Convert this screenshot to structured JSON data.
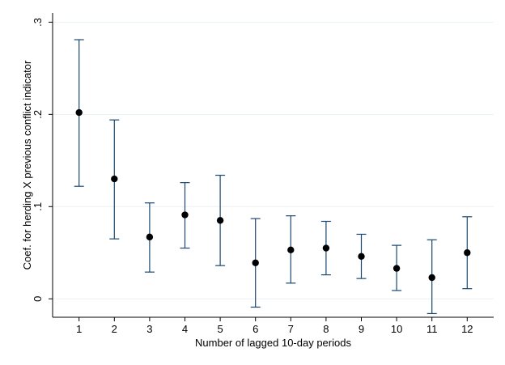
{
  "chart_data": {
    "type": "scatter",
    "title": "",
    "xlabel": "Number of lagged 10-day periods",
    "ylabel": "Coef. for herding X previous conflict indicator",
    "xlim": [
      0.25,
      12.75
    ],
    "ylim": [
      -0.02,
      0.31
    ],
    "x_ticks": [
      "1",
      "2",
      "3",
      "4",
      "5",
      "6",
      "7",
      "8",
      "9",
      "10",
      "11",
      "12"
    ],
    "y_ticks": [
      {
        "value": 0,
        "label": "0"
      },
      {
        "value": 0.1,
        "label": ".1"
      },
      {
        "value": 0.2,
        "label": ".2"
      },
      {
        "value": 0.3,
        "label": ".3"
      }
    ],
    "grid": true,
    "legend": "none",
    "colors": {
      "point": "#000000",
      "error_bar": "#1a476f",
      "grid": "#eaf2f3",
      "background": "#ffffff",
      "outer": "#ffffff"
    },
    "points": [
      {
        "x": 1,
        "y": 0.202,
        "lo": 0.122,
        "hi": 0.281
      },
      {
        "x": 2,
        "y": 0.13,
        "lo": 0.065,
        "hi": 0.194
      },
      {
        "x": 3,
        "y": 0.067,
        "lo": 0.029,
        "hi": 0.104
      },
      {
        "x": 4,
        "y": 0.091,
        "lo": 0.055,
        "hi": 0.126
      },
      {
        "x": 5,
        "y": 0.085,
        "lo": 0.036,
        "hi": 0.134
      },
      {
        "x": 6,
        "y": 0.039,
        "lo": -0.009,
        "hi": 0.087
      },
      {
        "x": 7,
        "y": 0.053,
        "lo": 0.017,
        "hi": 0.09
      },
      {
        "x": 8,
        "y": 0.055,
        "lo": 0.026,
        "hi": 0.084
      },
      {
        "x": 9,
        "y": 0.046,
        "lo": 0.022,
        "hi": 0.07
      },
      {
        "x": 10,
        "y": 0.033,
        "lo": 0.009,
        "hi": 0.058
      },
      {
        "x": 11,
        "y": 0.023,
        "lo": -0.016,
        "hi": 0.064
      },
      {
        "x": 12,
        "y": 0.05,
        "lo": 0.011,
        "hi": 0.089
      }
    ]
  }
}
